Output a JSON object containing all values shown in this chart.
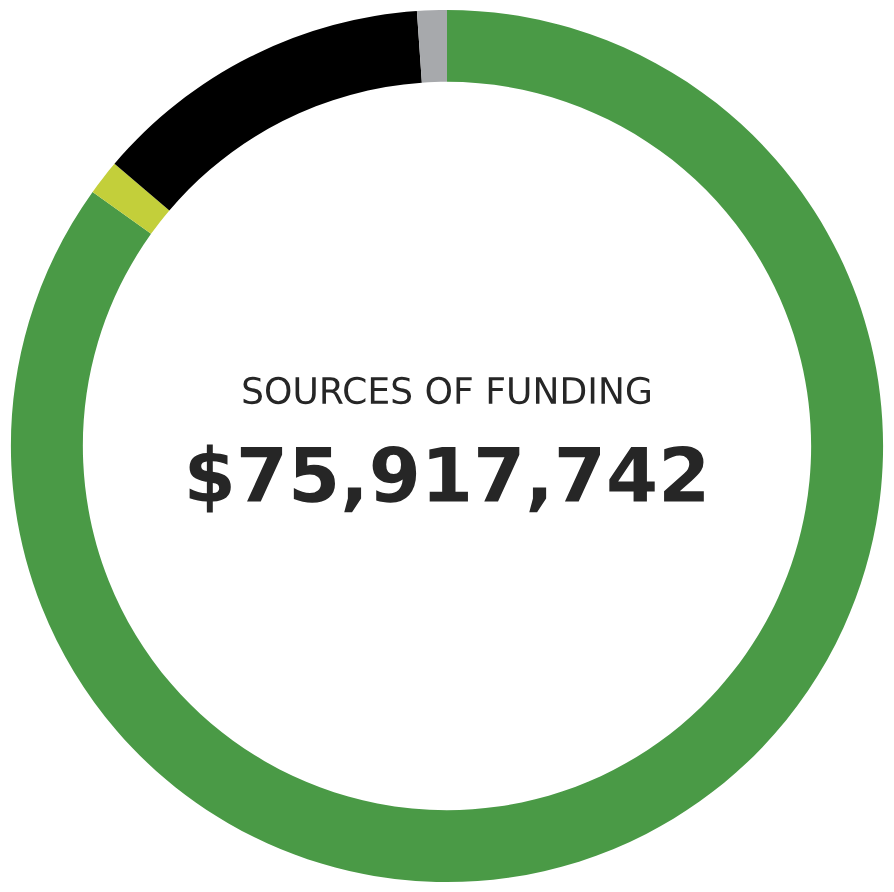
{
  "chart_data": {
    "type": "donut",
    "title": "SOURCES OF FUNDING",
    "subtitle": "$75,917,742",
    "categories": [
      null,
      null,
      null,
      null
    ],
    "values": [
      84.9,
      1.3,
      12.7,
      1.1
    ],
    "colors": [
      "#4a9a46",
      "#c3cf3a",
      "#000000",
      "#a7a9ac"
    ]
  }
}
